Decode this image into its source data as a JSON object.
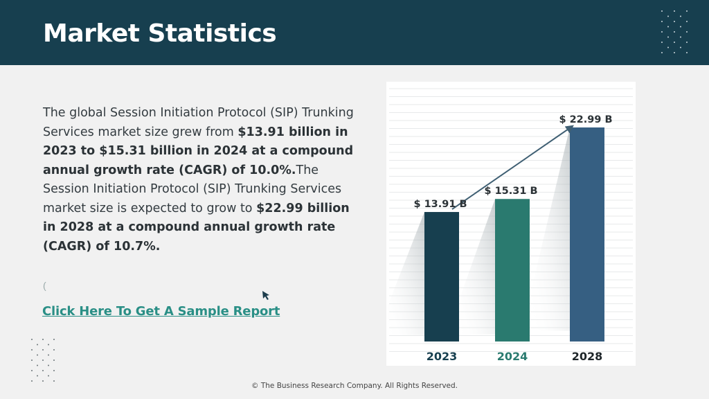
{
  "header": {
    "title": "Market Statistics"
  },
  "body": {
    "p1": "The global Session Initiation Protocol (SIP) Trunking Services market size grew from ",
    "b1": "$13.91 billion in 2023 to $15.31 billion in 2024 at a compound annual growth rate (CAGR) of 10.0%.",
    "p2": "The Session Initiation Protocol (SIP) Trunking Services market size is expected to grow to ",
    "b2": "$22.99 billion in 2028 at a compound annual growth rate (CAGR) of 10.7%."
  },
  "small_mark": "(",
  "link": {
    "label": "Click Here To Get A Sample Report"
  },
  "footer": {
    "text": "© The Business Research Company. All Rights Reserved."
  },
  "colors": {
    "header_bg": "#173f4f",
    "link": "#2a8f86",
    "bar_2023": "#173f4f",
    "bar_2024": "#2a7a6f",
    "bar_2028": "#365f82"
  },
  "chart_data": {
    "type": "bar",
    "categories": [
      "2023",
      "2024",
      "2028"
    ],
    "values": [
      13.91,
      15.31,
      22.99
    ],
    "data_labels": [
      "$ 13.91 B",
      "$ 15.31 B",
      "$ 22.99 B"
    ],
    "bar_colors": [
      "#173f4f",
      "#2a7a6f",
      "#365f82"
    ],
    "title": "",
    "xlabel": "",
    "ylabel": "",
    "grid": true,
    "trend_arrow": true
  }
}
